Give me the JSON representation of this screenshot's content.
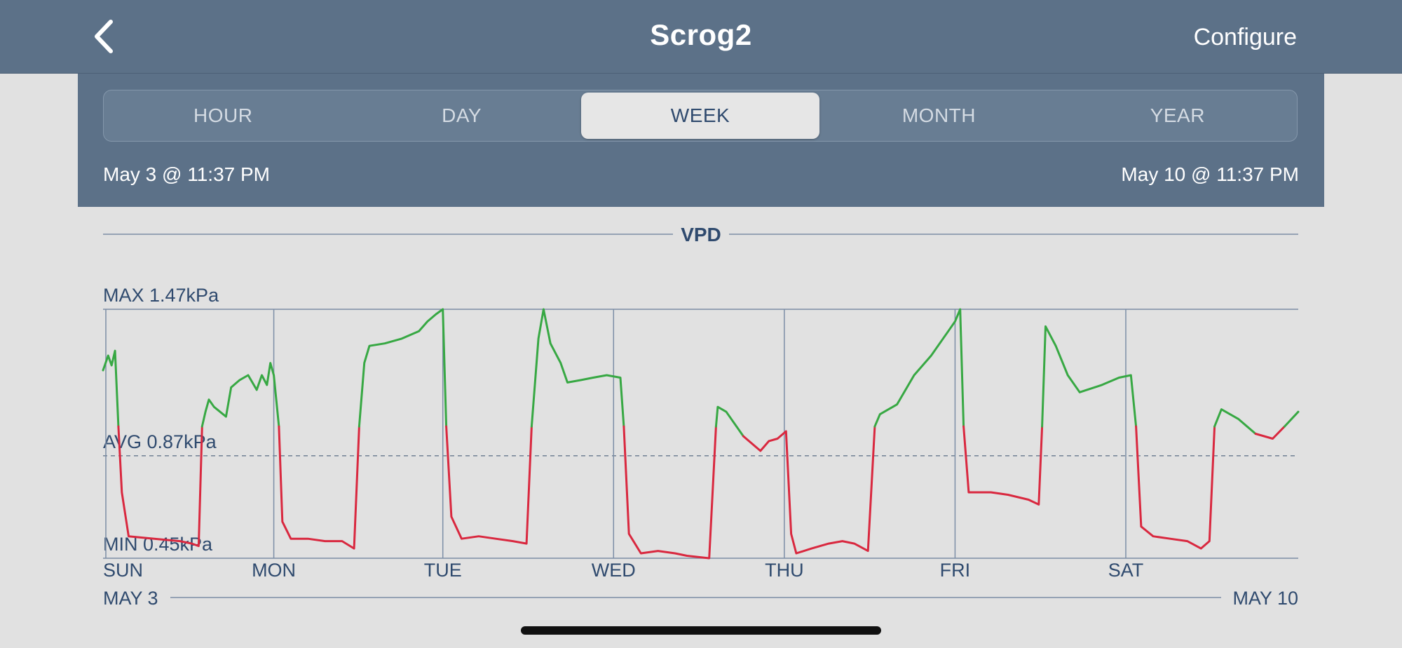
{
  "header": {
    "title": "Scrog2",
    "configure_label": "Configure",
    "back_icon": "chevron-left-icon"
  },
  "range_tabs": [
    "HOUR",
    "DAY",
    "WEEK",
    "MONTH",
    "YEAR"
  ],
  "selected_tab": "WEEK",
  "range": {
    "start": "May 3 @ 11:37 PM",
    "end": "May 10 @ 11:37 PM"
  },
  "chart": {
    "max_label": "MAX 1.47kPa",
    "avg_label": "AVG 0.87kPa",
    "min_label": "MIN 0.45kPa",
    "start_date": "MAY 3",
    "end_date": "MAY 10"
  },
  "chart_data": {
    "type": "line",
    "title": "VPD",
    "x_unit": "days",
    "xlim": [
      0,
      7
    ],
    "ylim": [
      0.45,
      1.47
    ],
    "ylabel": "",
    "day_ticks": [
      {
        "label": "SUN",
        "x": 0.0
      },
      {
        "label": "MON",
        "x": 1.0
      },
      {
        "label": "TUE",
        "x": 1.99
      },
      {
        "label": "WED",
        "x": 2.99
      },
      {
        "label": "THU",
        "x": 3.99
      },
      {
        "label": "FRI",
        "x": 4.99
      },
      {
        "label": "SAT",
        "x": 5.99
      }
    ],
    "avg": 0.87,
    "threshold": 0.99,
    "colors": {
      "above": "#37a843",
      "below": "#d9283f",
      "grid": "#7c8ea6",
      "text": "#2f4a6e"
    },
    "series": [
      {
        "values": [
          [
            0.0,
            1.22
          ],
          [
            0.03,
            1.28
          ],
          [
            0.05,
            1.24
          ],
          [
            0.07,
            1.3
          ],
          [
            0.09,
            0.99
          ],
          [
            0.11,
            0.72
          ],
          [
            0.15,
            0.54
          ],
          [
            0.3,
            0.53
          ],
          [
            0.45,
            0.52
          ],
          [
            0.52,
            0.51
          ],
          [
            0.56,
            0.5
          ],
          [
            0.58,
            0.99
          ],
          [
            0.6,
            1.05
          ],
          [
            0.62,
            1.1
          ],
          [
            0.65,
            1.07
          ],
          [
            0.72,
            1.03
          ],
          [
            0.75,
            1.15
          ],
          [
            0.8,
            1.18
          ],
          [
            0.85,
            1.2
          ],
          [
            0.9,
            1.14
          ],
          [
            0.93,
            1.2
          ],
          [
            0.96,
            1.16
          ],
          [
            0.98,
            1.25
          ],
          [
            1.0,
            1.2
          ],
          [
            1.03,
            0.99
          ],
          [
            1.05,
            0.6
          ],
          [
            1.1,
            0.53
          ],
          [
            1.2,
            0.53
          ],
          [
            1.3,
            0.52
          ],
          [
            1.4,
            0.52
          ],
          [
            1.47,
            0.49
          ],
          [
            1.5,
            0.99
          ],
          [
            1.53,
            1.25
          ],
          [
            1.56,
            1.32
          ],
          [
            1.65,
            1.33
          ],
          [
            1.75,
            1.35
          ],
          [
            1.85,
            1.38
          ],
          [
            1.9,
            1.42
          ],
          [
            1.95,
            1.45
          ],
          [
            1.99,
            1.47
          ],
          [
            2.01,
            0.99
          ],
          [
            2.04,
            0.62
          ],
          [
            2.1,
            0.53
          ],
          [
            2.2,
            0.54
          ],
          [
            2.3,
            0.53
          ],
          [
            2.4,
            0.52
          ],
          [
            2.48,
            0.51
          ],
          [
            2.51,
            0.99
          ],
          [
            2.55,
            1.35
          ],
          [
            2.58,
            1.47
          ],
          [
            2.62,
            1.33
          ],
          [
            2.68,
            1.25
          ],
          [
            2.72,
            1.17
          ],
          [
            2.8,
            1.18
          ],
          [
            2.87,
            1.19
          ],
          [
            2.95,
            1.2
          ],
          [
            3.03,
            1.19
          ],
          [
            3.05,
            0.99
          ],
          [
            3.08,
            0.55
          ],
          [
            3.15,
            0.47
          ],
          [
            3.25,
            0.48
          ],
          [
            3.35,
            0.47
          ],
          [
            3.42,
            0.46
          ],
          [
            3.55,
            0.45
          ],
          [
            3.59,
            0.99
          ],
          [
            3.6,
            1.07
          ],
          [
            3.65,
            1.05
          ],
          [
            3.75,
            0.95
          ],
          [
            3.85,
            0.89
          ],
          [
            3.9,
            0.93
          ],
          [
            3.95,
            0.94
          ],
          [
            4.0,
            0.97
          ],
          [
            4.03,
            0.55
          ],
          [
            4.06,
            0.47
          ],
          [
            4.15,
            0.49
          ],
          [
            4.25,
            0.51
          ],
          [
            4.33,
            0.52
          ],
          [
            4.4,
            0.51
          ],
          [
            4.48,
            0.48
          ],
          [
            4.52,
            0.99
          ],
          [
            4.55,
            1.04
          ],
          [
            4.65,
            1.08
          ],
          [
            4.75,
            1.2
          ],
          [
            4.85,
            1.28
          ],
          [
            4.95,
            1.38
          ],
          [
            4.99,
            1.42
          ],
          [
            5.02,
            1.47
          ],
          [
            5.04,
            0.99
          ],
          [
            5.07,
            0.72
          ],
          [
            5.2,
            0.72
          ],
          [
            5.3,
            0.71
          ],
          [
            5.42,
            0.69
          ],
          [
            5.48,
            0.67
          ],
          [
            5.5,
            0.99
          ],
          [
            5.52,
            1.4
          ],
          [
            5.58,
            1.32
          ],
          [
            5.65,
            1.2
          ],
          [
            5.72,
            1.13
          ],
          [
            5.85,
            1.16
          ],
          [
            5.95,
            1.19
          ],
          [
            6.02,
            1.2
          ],
          [
            6.05,
            0.99
          ],
          [
            6.08,
            0.58
          ],
          [
            6.15,
            0.54
          ],
          [
            6.25,
            0.53
          ],
          [
            6.35,
            0.52
          ],
          [
            6.43,
            0.49
          ],
          [
            6.48,
            0.52
          ],
          [
            6.51,
            0.99
          ],
          [
            6.55,
            1.06
          ],
          [
            6.65,
            1.02
          ],
          [
            6.75,
            0.96
          ],
          [
            6.85,
            0.94
          ],
          [
            6.92,
            0.99
          ],
          [
            7.0,
            1.05
          ]
        ]
      }
    ]
  }
}
